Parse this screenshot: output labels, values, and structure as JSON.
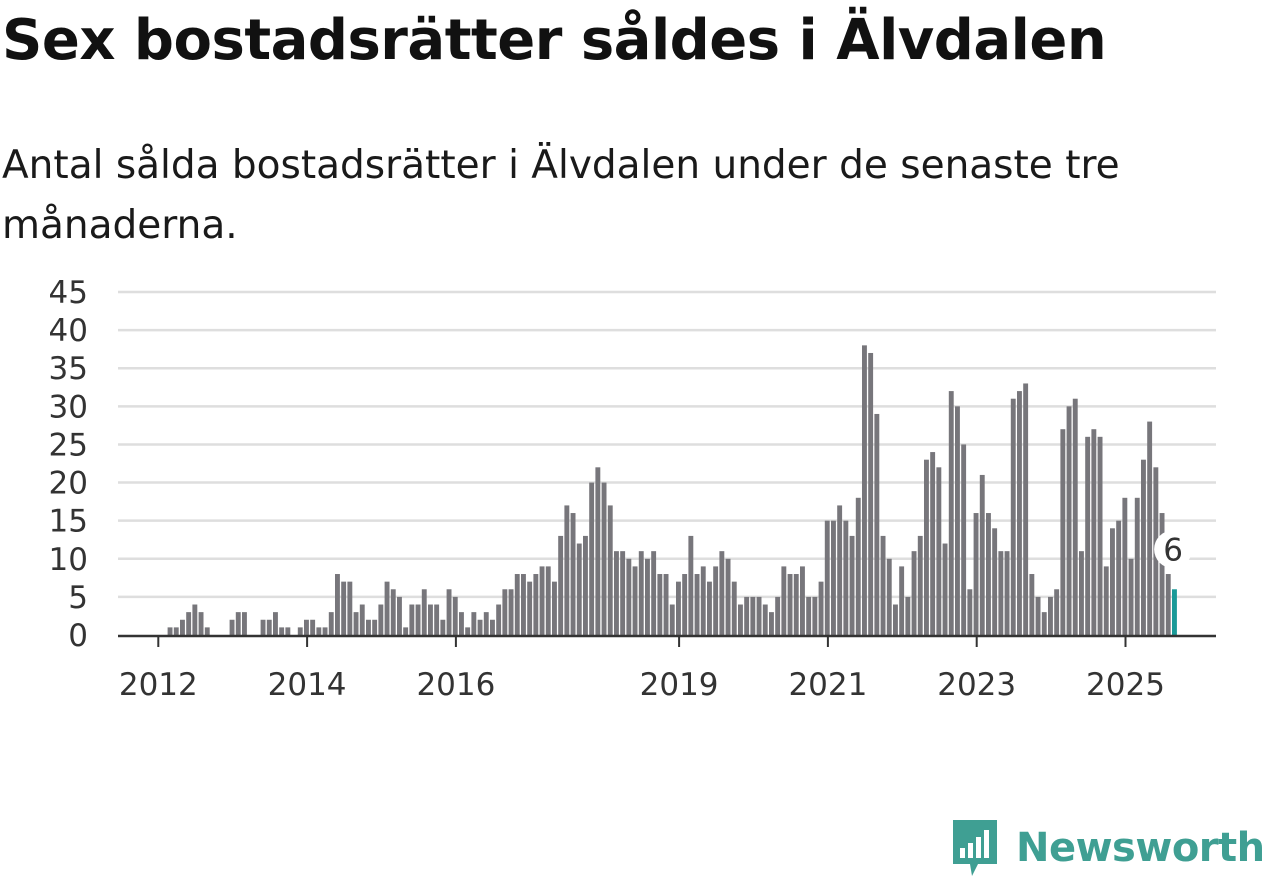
{
  "chart_data": {
    "type": "bar",
    "title": "Sex bostadsrätter såldes i Älvdalen",
    "subtitle": "Antal sålda bostadsrätter i Älvdalen under de senaste tre månaderna.",
    "xlabel": "",
    "ylabel": "",
    "ylim": [
      0,
      45
    ],
    "yticks": [
      0,
      5,
      10,
      15,
      20,
      25,
      30,
      35,
      40,
      45
    ],
    "xticks": [
      "2012",
      "2014",
      "2016",
      "2019",
      "2021",
      "2023",
      "2025"
    ],
    "grid": true,
    "start": "2011-07",
    "values": [
      0,
      0,
      0,
      0,
      0,
      0,
      0,
      0,
      1,
      1,
      2,
      3,
      4,
      3,
      1,
      0,
      0,
      0,
      2,
      3,
      3,
      0,
      0,
      2,
      2,
      3,
      1,
      1,
      0,
      1,
      2,
      2,
      1,
      1,
      3,
      8,
      7,
      7,
      3,
      4,
      2,
      2,
      4,
      7,
      6,
      5,
      1,
      4,
      4,
      6,
      4,
      4,
      2,
      6,
      5,
      3,
      1,
      3,
      2,
      3,
      2,
      4,
      6,
      6,
      8,
      8,
      7,
      8,
      9,
      9,
      7,
      13,
      17,
      16,
      12,
      13,
      20,
      22,
      20,
      17,
      11,
      11,
      10,
      9,
      11,
      10,
      11,
      8,
      8,
      4,
      7,
      8,
      13,
      8,
      9,
      7,
      9,
      11,
      10,
      7,
      4,
      5,
      5,
      5,
      4,
      3,
      5,
      9,
      8,
      8,
      9,
      5,
      5,
      7,
      15,
      15,
      17,
      15,
      13,
      18,
      38,
      37,
      29,
      13,
      10,
      4,
      9,
      5,
      11,
      13,
      23,
      24,
      22,
      12,
      32,
      30,
      25,
      6,
      16,
      21,
      16,
      14,
      11,
      11,
      31,
      32,
      33,
      8,
      5,
      3,
      5,
      6,
      27,
      30,
      31,
      11,
      26,
      27,
      26,
      9,
      14,
      15,
      18,
      10,
      18,
      23,
      28,
      22,
      16,
      8,
      6
    ],
    "highlight": {
      "index": 170,
      "value": 6,
      "label": "6",
      "color": "#1a9a98"
    },
    "bar_color": "#77767b",
    "grid_color": "#dedede"
  },
  "brand": {
    "name": "Newsworthy",
    "color": "#3f9f93",
    "icon": "newsworthy-chart-icon"
  }
}
